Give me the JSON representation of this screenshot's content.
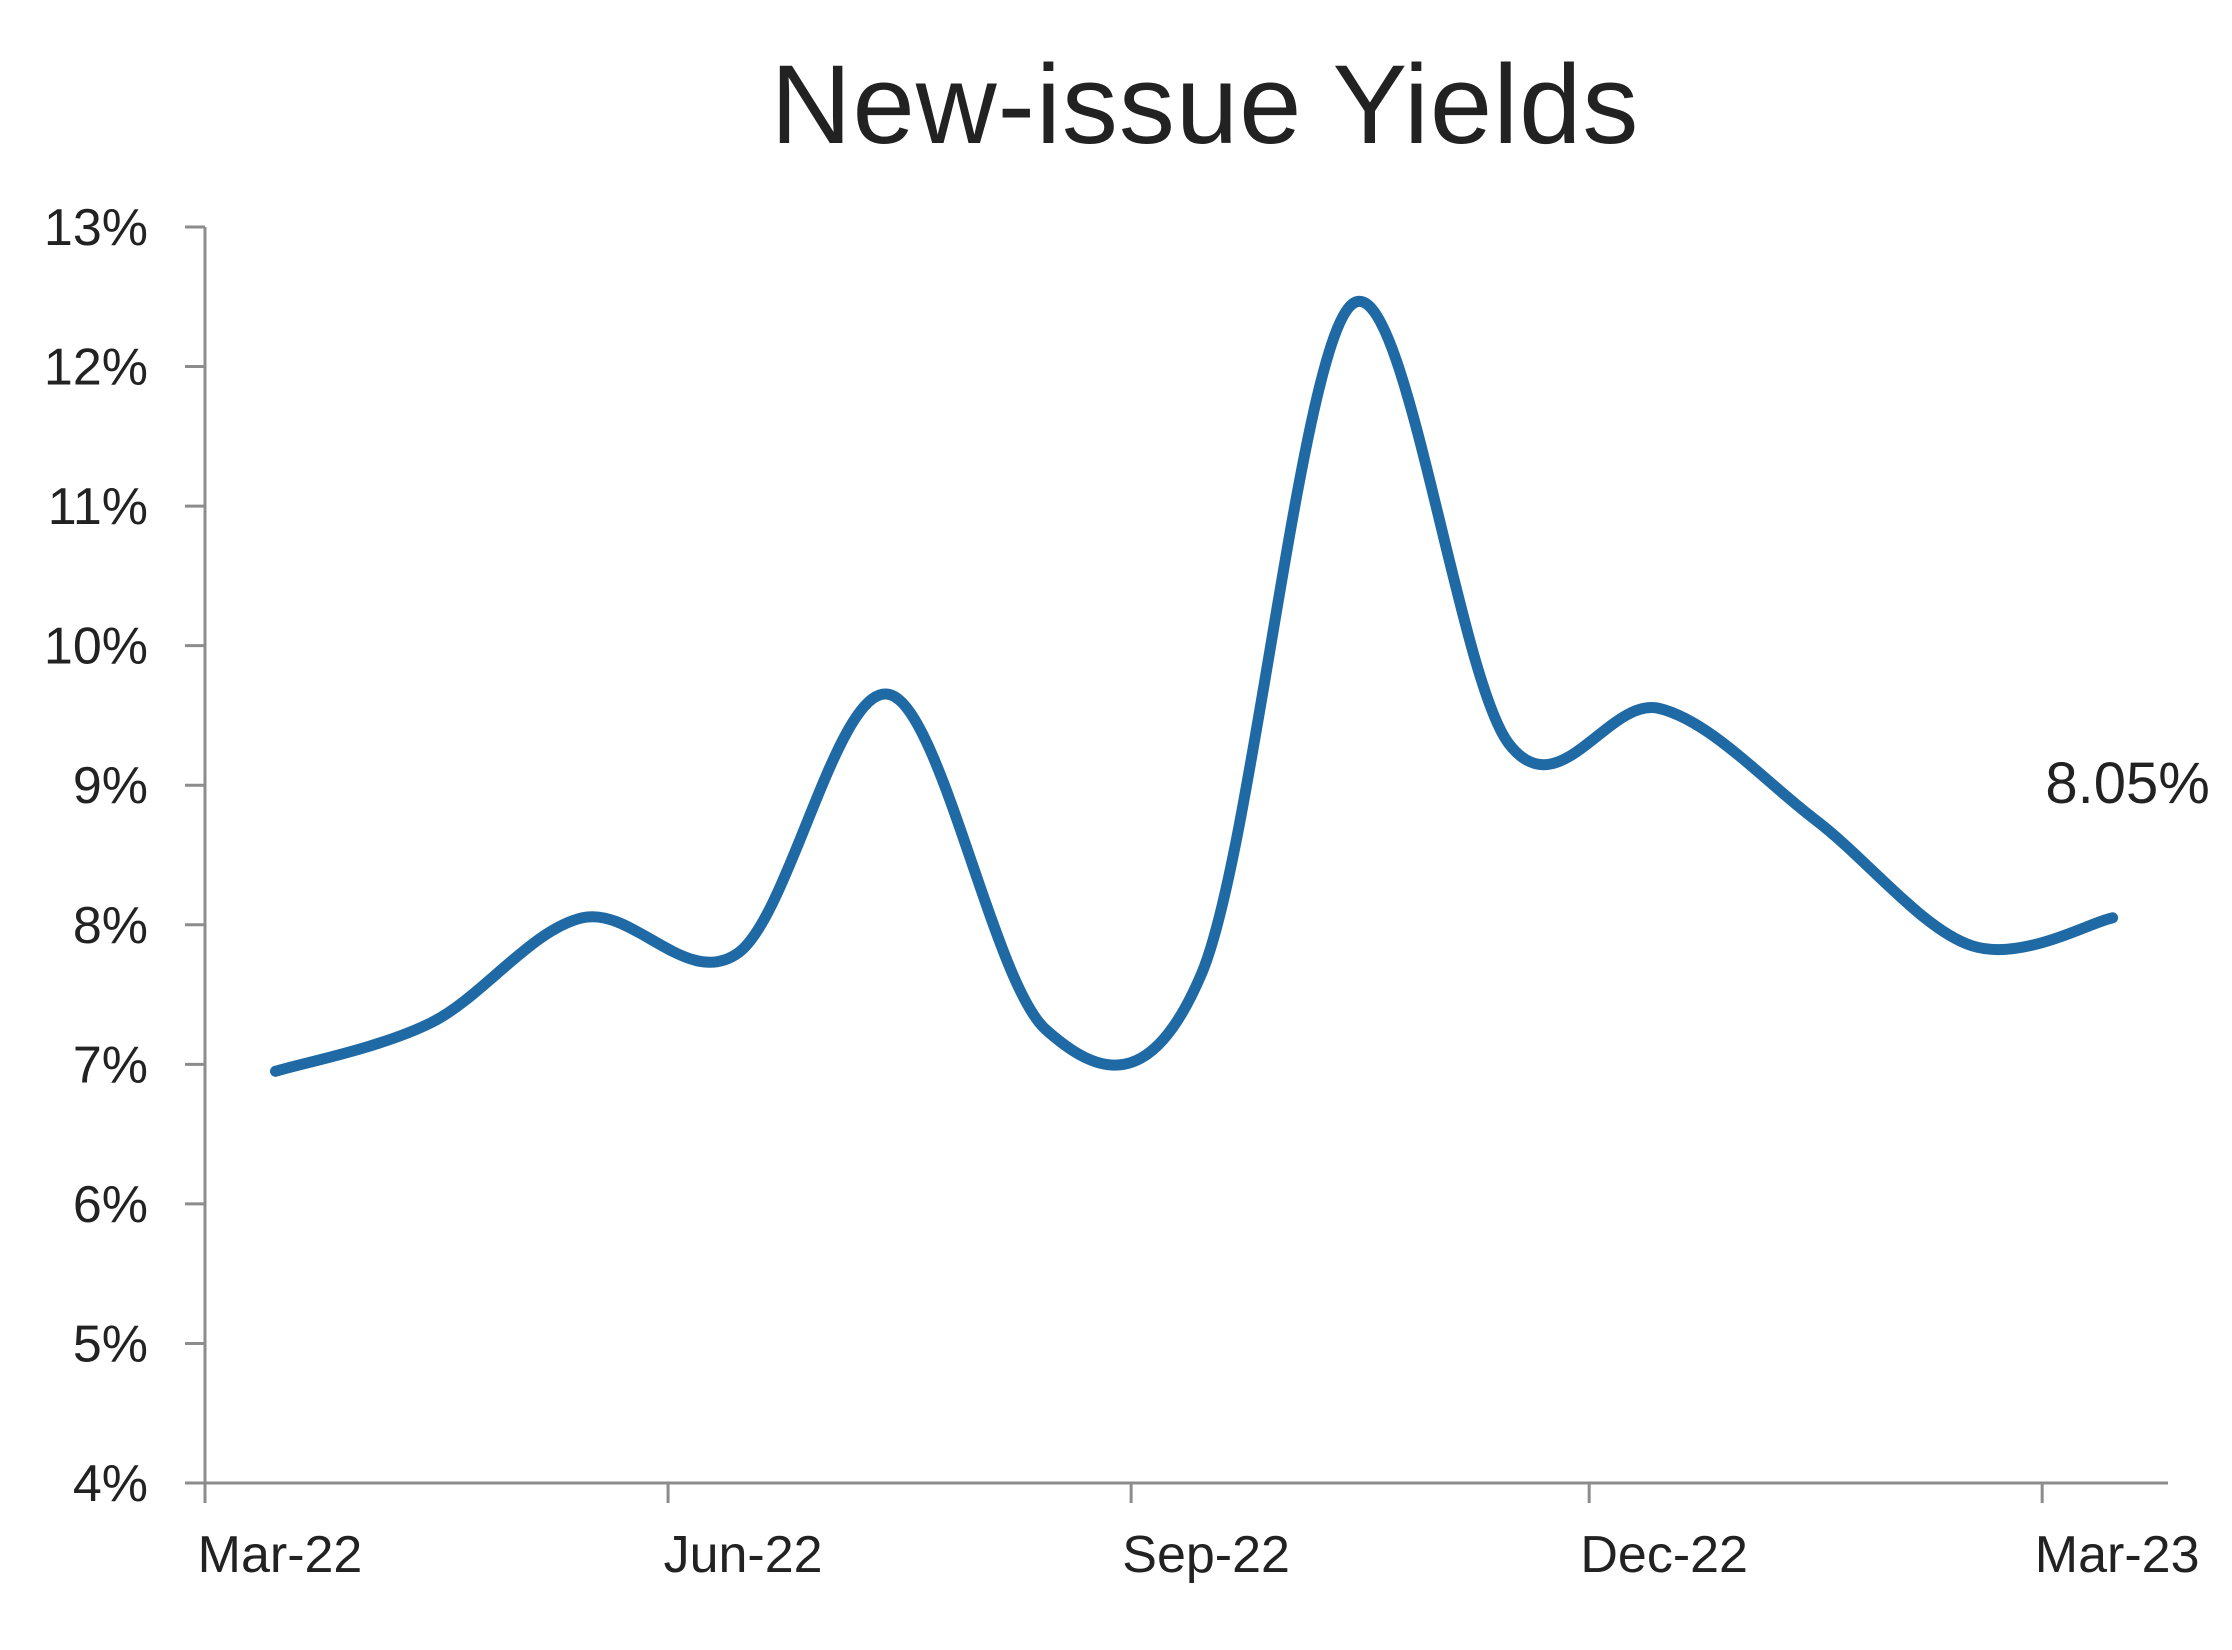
{
  "chart_data": {
    "type": "line",
    "title": "New-issue Yields",
    "xlabel": "",
    "ylabel": "",
    "x": [
      "2022-03-15",
      "2022-04-15",
      "2022-05-15",
      "2022-06-15",
      "2022-07-15",
      "2022-08-15",
      "2022-09-15",
      "2022-10-15",
      "2022-11-15",
      "2022-12-15",
      "2023-01-15",
      "2023-02-15",
      "2023-03-15"
    ],
    "series": [
      {
        "values": [
          6.95,
          7.3,
          8.05,
          7.8,
          9.65,
          7.25,
          7.65,
          12.45,
          9.3,
          9.55,
          8.75,
          7.85,
          8.05
        ],
        "color": "#1f6aa5"
      }
    ],
    "xlim": [
      "2022-03-01",
      "2023-03-26"
    ],
    "ylim": [
      4,
      13
    ],
    "x_ticks": [
      {
        "date": "2022-03-01",
        "label": "Mar-22"
      },
      {
        "date": "2022-06-01",
        "label": "Jun-22"
      },
      {
        "date": "2022-09-01",
        "label": "Sep-22"
      },
      {
        "date": "2022-12-01",
        "label": "Dec-22"
      },
      {
        "date": "2023-03-01",
        "label": "Mar-23"
      }
    ],
    "y_ticks": [
      {
        "value": 4,
        "label": "4%"
      },
      {
        "value": 5,
        "label": "5%"
      },
      {
        "value": 6,
        "label": "6%"
      },
      {
        "value": 7,
        "label": "7%"
      },
      {
        "value": 8,
        "label": "8%"
      },
      {
        "value": 9,
        "label": "9%"
      },
      {
        "value": 10,
        "label": "10%"
      },
      {
        "value": 11,
        "label": "11%"
      },
      {
        "value": 12,
        "label": "12%"
      },
      {
        "value": 13,
        "label": "13%"
      }
    ],
    "end_label": "8.05%",
    "grid": false,
    "legend": "none"
  }
}
